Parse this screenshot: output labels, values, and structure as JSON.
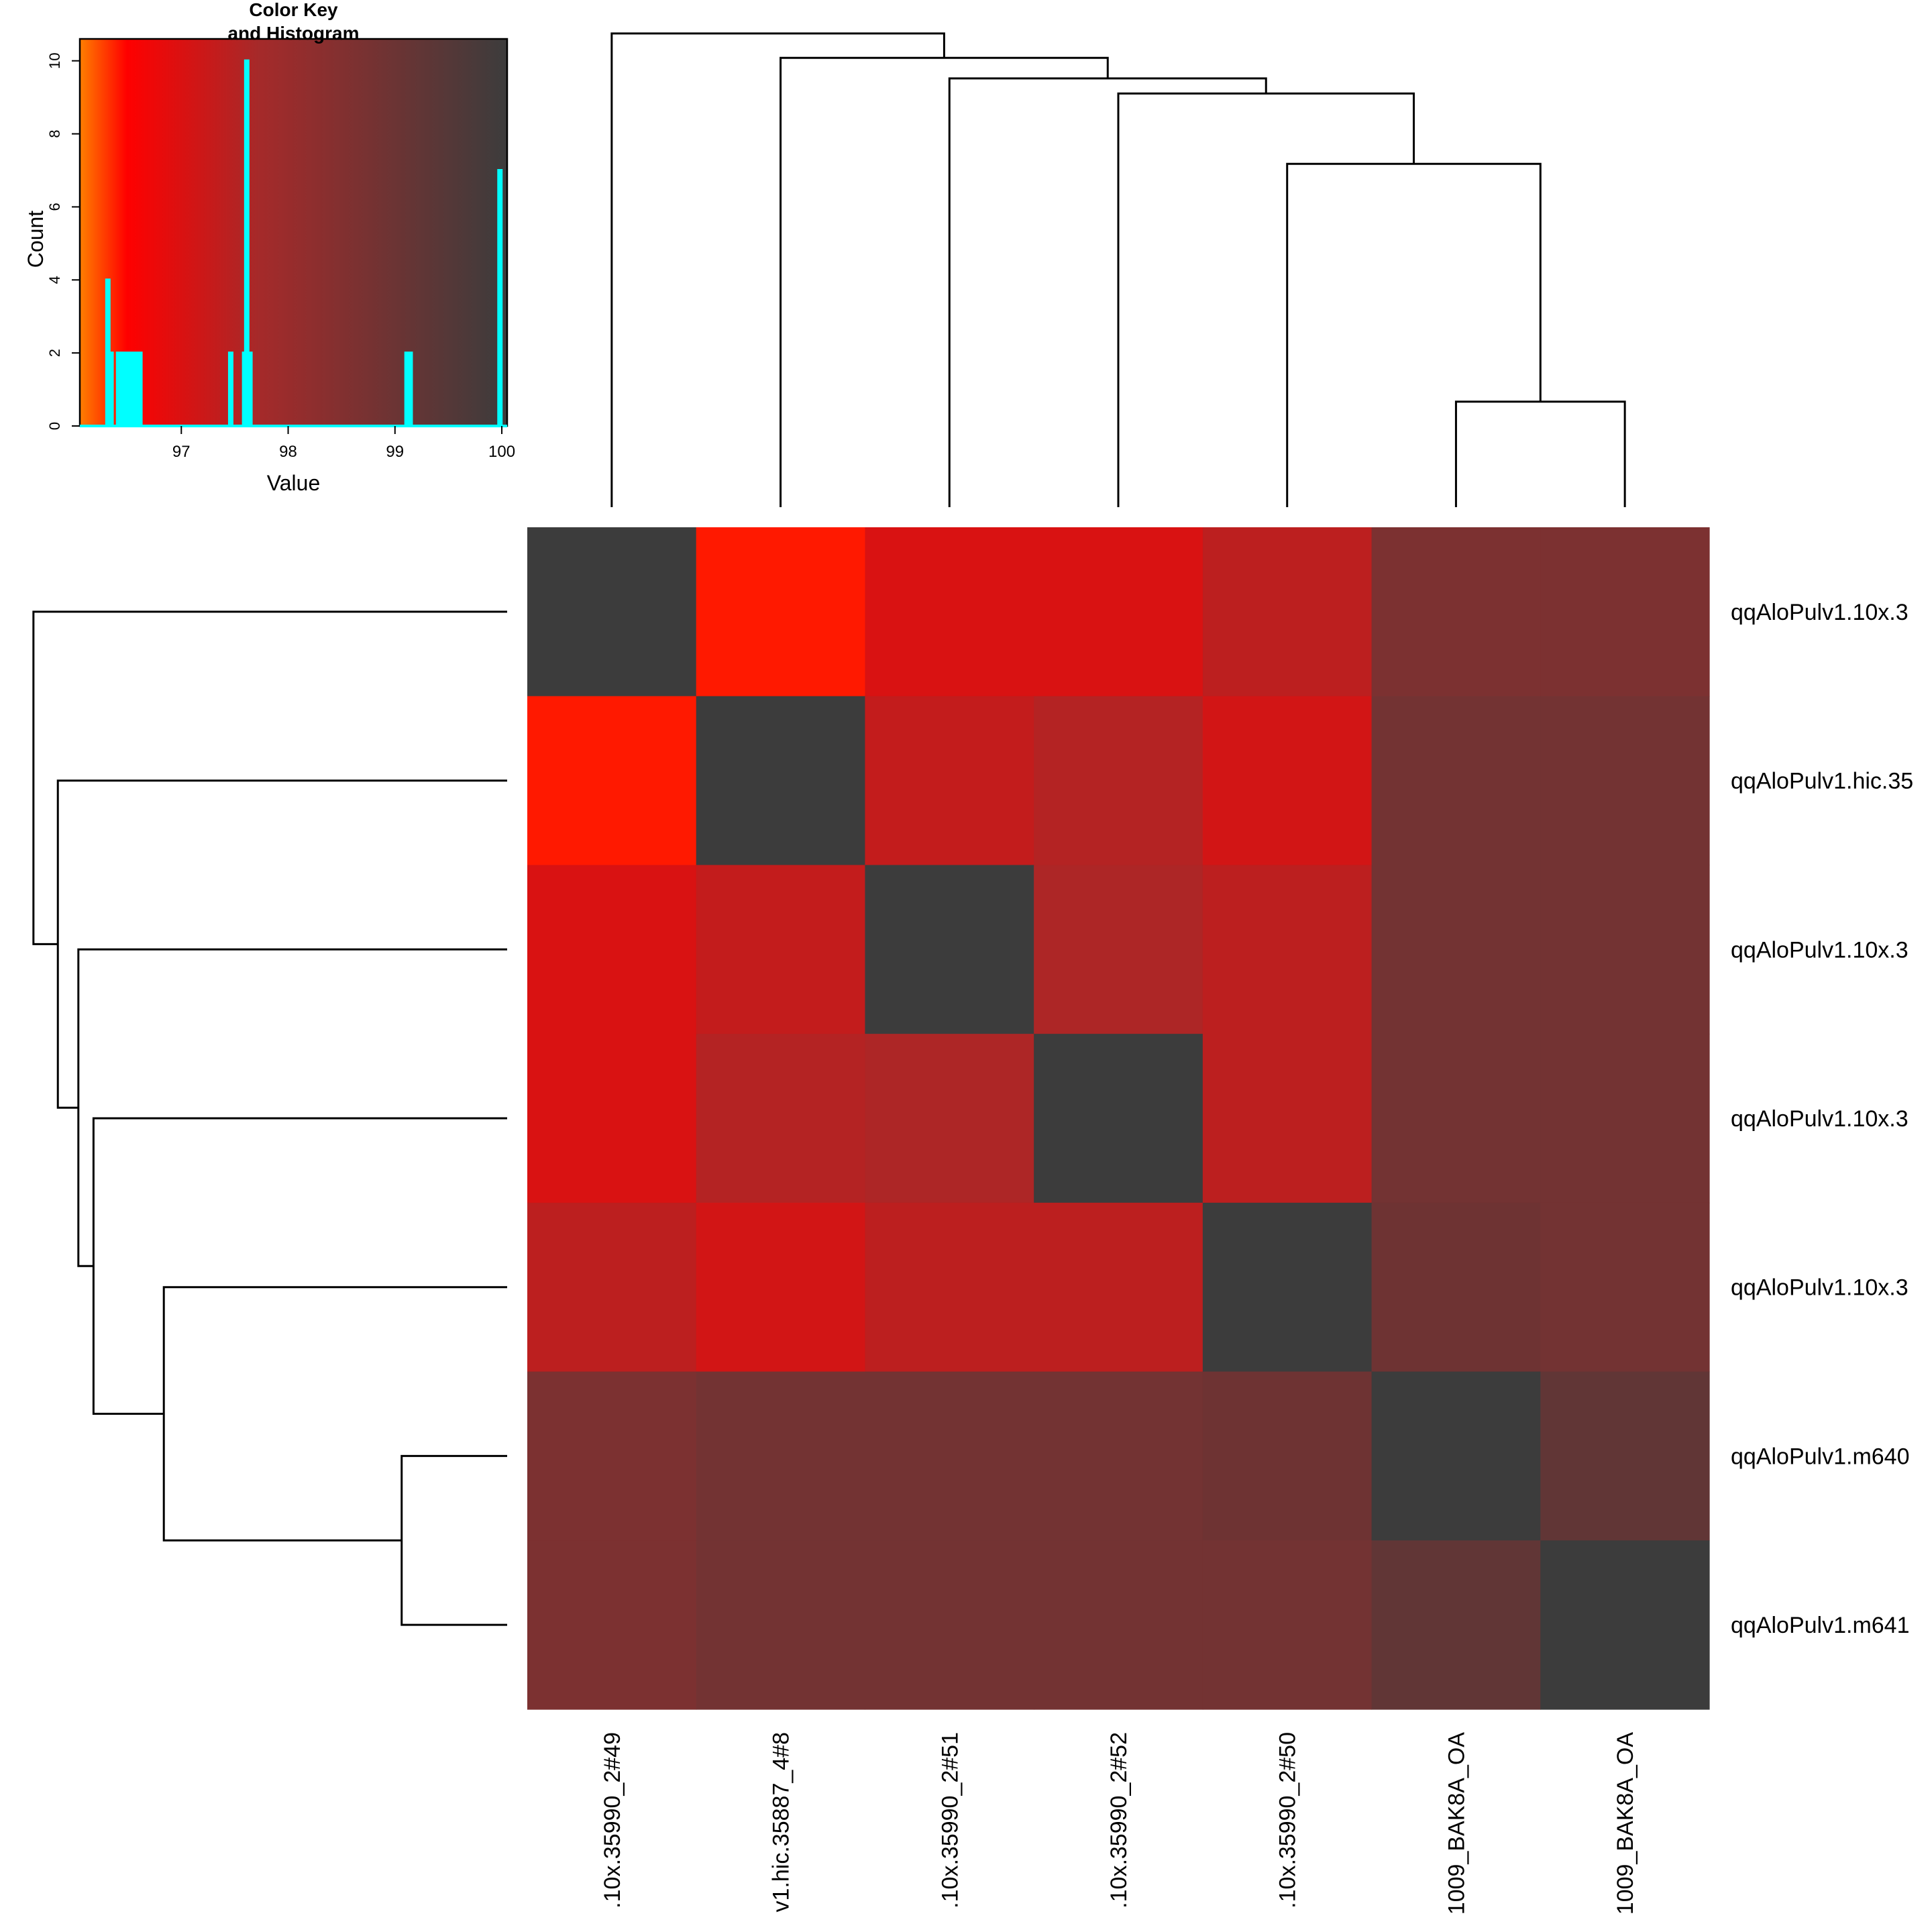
{
  "chart_data": [
    {
      "type": "heatmap",
      "row_labels": [
        "qqAloPulv1.10x.3",
        "qqAloPulv1.hic.35",
        "qqAloPulv1.10x.3",
        "qqAloPulv1.10x.3",
        "qqAloPulv1.10x.3",
        "qqAloPulv1.m640",
        "qqAloPulv1.m641"
      ],
      "col_labels": [
        ".10x.35990_2#49",
        "v1.hic.35887_4#8",
        ".10x.35990_2#51",
        ".10x.35990_2#52",
        ".10x.35990_2#50",
        "1009_BAK8A_OA",
        "1009_BAK8A_OA"
      ],
      "values": [
        [
          100,
          96.4,
          97.0,
          97.0,
          97.4,
          98.6,
          98.6
        ],
        [
          96.4,
          100,
          97.3,
          97.5,
          97.1,
          98.8,
          98.8
        ],
        [
          97.0,
          97.3,
          100,
          97.6,
          97.4,
          98.8,
          98.8
        ],
        [
          97.0,
          97.5,
          97.6,
          100,
          97.4,
          98.8,
          98.8
        ],
        [
          97.4,
          97.1,
          97.4,
          97.4,
          100,
          98.9,
          98.8
        ],
        [
          98.6,
          98.8,
          98.8,
          98.8,
          98.9,
          100,
          99.2
        ],
        [
          98.6,
          98.8,
          98.8,
          98.8,
          98.8,
          99.2,
          100
        ]
      ],
      "color_scale": [
        "#ff7f00",
        "#ff0000",
        "#a52a2a",
        "#3c3c3c"
      ]
    },
    {
      "type": "line",
      "title": "Color Key\nand Histogram",
      "xlabel": "Value",
      "ylabel": "Count",
      "xticks": [
        "97",
        "98",
        "99",
        "100"
      ],
      "yticks": [
        "0",
        "2",
        "4",
        "6",
        "8",
        "10"
      ],
      "xlim": [
        96.05,
        100.05
      ],
      "ylim": [
        0,
        10.6
      ],
      "line_color": "#00ffff",
      "bins": [
        {
          "x": 96.3,
          "count": 4
        },
        {
          "x": 96.33,
          "count": 2
        },
        {
          "x": 96.4,
          "count": 2
        },
        {
          "x": 96.45,
          "count": 2
        },
        {
          "x": 96.5,
          "count": 2
        },
        {
          "x": 96.55,
          "count": 2
        },
        {
          "x": 96.6,
          "count": 2
        },
        {
          "x": 97.45,
          "count": 2
        },
        {
          "x": 97.58,
          "count": 2
        },
        {
          "x": 97.6,
          "count": 10
        },
        {
          "x": 97.63,
          "count": 2
        },
        {
          "x": 99.1,
          "count": 2
        },
        {
          "x": 99.13,
          "count": 2
        },
        {
          "x": 99.97,
          "count": 7
        }
      ]
    }
  ]
}
